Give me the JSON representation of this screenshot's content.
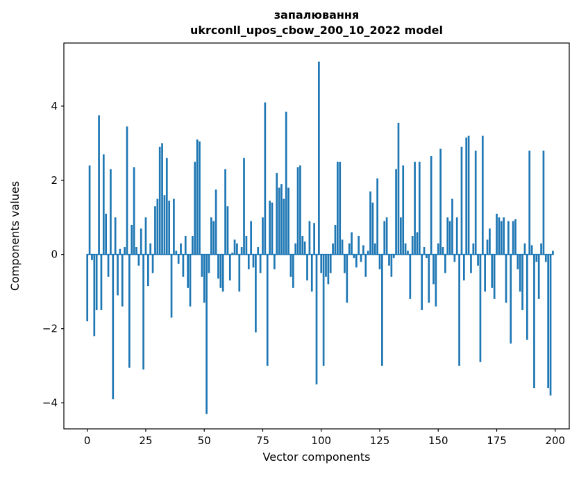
{
  "chart_data": {
    "type": "bar",
    "title": "запалювання",
    "subtitle": "ukrconll_upos_cbow_200_10_2022 model",
    "xlabel": "Vector components",
    "ylabel": "Components values",
    "xlim": [
      -10,
      206
    ],
    "ylim": [
      -4.7,
      5.7
    ],
    "x_ticks": [
      0,
      25,
      50,
      75,
      100,
      125,
      150,
      175,
      200
    ],
    "y_ticks": [
      -4,
      -2,
      0,
      2,
      4
    ],
    "bar_color": "#1f77b4",
    "bar_width": 0.8,
    "grid": false,
    "legend": "none",
    "values": [
      -1.8,
      2.4,
      -0.15,
      -2.2,
      -1.5,
      3.75,
      -1.5,
      2.7,
      1.1,
      -0.6,
      2.3,
      -3.9,
      1.0,
      -1.1,
      0.15,
      -1.4,
      0.2,
      3.45,
      -3.05,
      0.8,
      2.35,
      0.2,
      -0.3,
      0.7,
      -3.1,
      1.0,
      -0.85,
      0.3,
      -0.5,
      1.3,
      1.5,
      2.9,
      3.0,
      1.6,
      2.6,
      1.45,
      -1.7,
      1.5,
      0.1,
      -0.25,
      0.3,
      -0.6,
      0.5,
      -0.9,
      -1.4,
      0.5,
      2.5,
      3.1,
      3.05,
      -0.6,
      -1.3,
      -4.3,
      -0.5,
      1.0,
      0.9,
      1.75,
      -0.65,
      -0.9,
      -1.0,
      2.3,
      1.3,
      -0.7,
      0.05,
      0.4,
      0.3,
      -1.0,
      0.2,
      2.6,
      0.5,
      -0.4,
      0.9,
      -0.35,
      -2.1,
      0.2,
      -0.5,
      1.0,
      4.1,
      -3.0,
      1.45,
      1.4,
      -0.4,
      2.2,
      1.8,
      1.9,
      1.5,
      3.85,
      1.8,
      -0.6,
      -0.9,
      0.3,
      2.35,
      2.4,
      0.5,
      0.35,
      -0.7,
      0.9,
      -1.0,
      0.85,
      -3.5,
      5.2,
      -0.5,
      -3.0,
      -0.6,
      -0.8,
      -0.5,
      0.3,
      0.8,
      2.5,
      2.5,
      0.4,
      -0.5,
      -1.3,
      0.3,
      0.6,
      -0.1,
      -0.35,
      0.5,
      -0.2,
      0.25,
      -0.6,
      0.1,
      1.7,
      1.4,
      0.3,
      2.05,
      -0.4,
      -3.0,
      0.9,
      1.0,
      -0.3,
      -0.6,
      -0.1,
      2.3,
      3.55,
      1.0,
      2.4,
      0.3,
      0.1,
      -1.2,
      0.5,
      2.5,
      0.6,
      2.5,
      -1.5,
      0.2,
      -0.1,
      -1.3,
      2.65,
      -0.8,
      -1.4,
      0.3,
      2.85,
      0.2,
      -0.5,
      1.0,
      0.9,
      1.5,
      -0.2,
      1.0,
      -3.0,
      2.9,
      -0.7,
      3.15,
      3.2,
      -0.5,
      0.3,
      2.8,
      -0.3,
      -2.9,
      3.2,
      -1.0,
      0.4,
      0.7,
      -0.9,
      -1.2,
      1.1,
      1.0,
      0.9,
      1.0,
      -1.3,
      0.9,
      -2.4,
      0.9,
      0.95,
      -0.4,
      -1.0,
      -1.5,
      0.3,
      -2.3,
      2.8,
      0.25,
      -3.6,
      -0.2,
      -1.2,
      0.3,
      2.8,
      -0.2,
      -3.6,
      -3.8,
      0.1
    ]
  }
}
